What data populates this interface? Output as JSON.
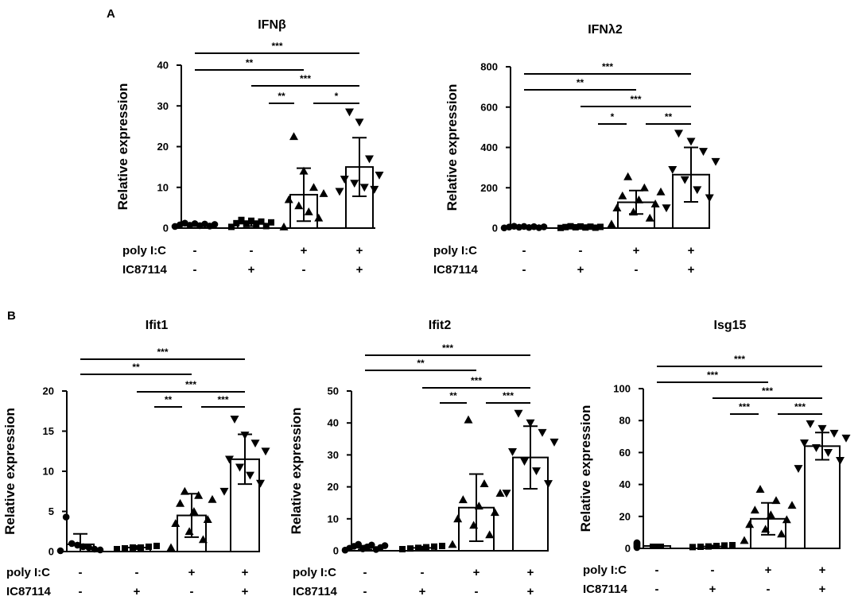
{
  "panels": [
    {
      "letter": "A",
      "charts": [
        0,
        1
      ]
    },
    {
      "letter": "B",
      "charts": [
        2,
        3,
        4
      ]
    }
  ],
  "conditions": {
    "rows": [
      {
        "label": "poly I:C",
        "signs": [
          "-",
          "-",
          "+",
          "+"
        ]
      },
      {
        "label": "IC87114",
        "signs": [
          "-",
          "+",
          "-",
          "+"
        ]
      }
    ]
  },
  "colors": {
    "ink": "#000000",
    "bar_fill": "#ffffff"
  },
  "chart_data": [
    {
      "type": "bar",
      "title": "IFNβ",
      "ylabel": "Relative expression",
      "ylim": [
        0,
        40
      ],
      "yticks": [
        0,
        10,
        20,
        30,
        40
      ],
      "categories": [
        "poly I:C - / IC87114 -",
        "poly I:C - / IC87114 +",
        "poly I:C + / IC87114 -",
        "poly I:C + / IC87114 +"
      ],
      "values": [
        0.8,
        1.1,
        8.2,
        15.0
      ],
      "errors": [
        0.3,
        0.6,
        6.5,
        7.2
      ],
      "markers": [
        "circle",
        "square",
        "triangle-up",
        "triangle-down"
      ],
      "points": [
        [
          0.4,
          0.5,
          0.6,
          0.7,
          0.8,
          0.9,
          1.0,
          1.1,
          1.2
        ],
        [
          0.3,
          0.5,
          0.8,
          1.0,
          1.2,
          1.4,
          1.6,
          1.8,
          2.0
        ],
        [
          0.3,
          2.5,
          4.0,
          5.5,
          7.0,
          8.5,
          10.0,
          14.0,
          22.5
        ],
        [
          9.0,
          9.5,
          10.0,
          11.0,
          12.0,
          13.0,
          17.0,
          26.0,
          28.5
        ]
      ],
      "significance": [
        {
          "from": 0,
          "to": 3,
          "label": "***"
        },
        {
          "from": 0,
          "to": 2,
          "label": "**"
        },
        {
          "from": 1,
          "to": 3,
          "label": "***"
        },
        {
          "from": 1,
          "to": 2,
          "label": "**"
        },
        {
          "from": 2,
          "to": 3,
          "label": "*"
        }
      ]
    },
    {
      "type": "bar",
      "title": "IFNλ2",
      "ylabel": "Relative expression",
      "ylim": [
        0,
        800
      ],
      "yticks": [
        0,
        200,
        400,
        600,
        800
      ],
      "categories": [
        "poly I:C - / IC87114 -",
        "poly I:C - / IC87114 +",
        "poly I:C + / IC87114 -",
        "poly I:C + / IC87114 +"
      ],
      "values": [
        5,
        6,
        128,
        265
      ],
      "errors": [
        3,
        3,
        58,
        135
      ],
      "markers": [
        "circle",
        "square",
        "triangle-up",
        "triangle-down"
      ],
      "points": [
        [
          1,
          2,
          3,
          4,
          5,
          6,
          7,
          8,
          9
        ],
        [
          1,
          2,
          3,
          4,
          5,
          6,
          7,
          8,
          9
        ],
        [
          20,
          50,
          80,
          100,
          120,
          140,
          160,
          180,
          200,
          255
        ],
        [
          100,
          150,
          190,
          240,
          290,
          330,
          380,
          430,
          470
        ]
      ],
      "significance": [
        {
          "from": 0,
          "to": 3,
          "label": "***"
        },
        {
          "from": 0,
          "to": 2,
          "label": "**"
        },
        {
          "from": 1,
          "to": 3,
          "label": "***"
        },
        {
          "from": 1,
          "to": 2,
          "label": "*"
        },
        {
          "from": 2,
          "to": 3,
          "label": "**"
        }
      ]
    },
    {
      "type": "bar",
      "title": "Ifit1",
      "ylabel": "Relative expression",
      "ylim": [
        0,
        20
      ],
      "yticks": [
        0,
        5,
        10,
        15,
        20
      ],
      "categories": [
        "poly I:C - / IC87114 -",
        "poly I:C - / IC87114 +",
        "poly I:C + / IC87114 -",
        "poly I:C + / IC87114 +"
      ],
      "values": [
        0.9,
        0.5,
        4.5,
        11.5
      ],
      "errors": [
        1.3,
        0.2,
        2.7,
        3.1
      ],
      "markers": [
        "circle",
        "square",
        "triangle-up",
        "triangle-down"
      ],
      "points": [
        [
          0.1,
          0.2,
          0.3,
          0.5,
          0.6,
          0.8,
          1.0,
          4.3
        ],
        [
          0.3,
          0.4,
          0.5,
          0.5,
          0.6,
          0.7
        ],
        [
          0.5,
          1.5,
          2.5,
          3.5,
          4.0,
          5.0,
          6.0,
          6.5,
          7.0,
          7.5
        ],
        [
          7.5,
          8.5,
          9.5,
          10.5,
          11.5,
          12.5,
          13.5,
          14.5,
          16.5
        ]
      ],
      "significance": [
        {
          "from": 0,
          "to": 3,
          "label": "***"
        },
        {
          "from": 0,
          "to": 2,
          "label": "**"
        },
        {
          "from": 1,
          "to": 3,
          "label": "***"
        },
        {
          "from": 1,
          "to": 2,
          "label": "**"
        },
        {
          "from": 2,
          "to": 3,
          "label": "***"
        }
      ]
    },
    {
      "type": "bar",
      "title": "Ifit2",
      "ylabel": "Relative expression",
      "ylim": [
        0,
        50
      ],
      "yticks": [
        0,
        10,
        20,
        30,
        40,
        50
      ],
      "categories": [
        "poly I:C - / IC87114 -",
        "poly I:C - / IC87114 +",
        "poly I:C + / IC87114 -",
        "poly I:C + / IC87114 +"
      ],
      "values": [
        1.0,
        0.9,
        13.5,
        29.2
      ],
      "errors": [
        0.6,
        0.4,
        10.5,
        9.8
      ],
      "markers": [
        "circle",
        "square",
        "triangle-up",
        "triangle-down"
      ],
      "points": [
        [
          0.2,
          0.4,
          0.6,
          0.8,
          1.0,
          1.2,
          1.4,
          1.6,
          1.8,
          2.0
        ],
        [
          0.5,
          0.7,
          0.9,
          1.1,
          1.3,
          1.5
        ],
        [
          2.0,
          5.0,
          8.0,
          10.0,
          12.0,
          14.0,
          16.0,
          18.0,
          21.0,
          41.0
        ],
        [
          18.0,
          21.0,
          25.0,
          28.0,
          31.0,
          34.0,
          37.0,
          40.0,
          43.0
        ]
      ],
      "significance": [
        {
          "from": 0,
          "to": 3,
          "label": "***"
        },
        {
          "from": 0,
          "to": 2,
          "label": "**"
        },
        {
          "from": 1,
          "to": 3,
          "label": "***"
        },
        {
          "from": 1,
          "to": 2,
          "label": "**"
        },
        {
          "from": 2,
          "to": 3,
          "label": "***"
        }
      ]
    },
    {
      "type": "bar",
      "title": "Isg15",
      "ylabel": "Relative expression",
      "ylim": [
        0,
        100
      ],
      "yticks": [
        0,
        20,
        40,
        60,
        80,
        100
      ],
      "categories": [
        "poly I:C - / IC87114 -",
        "poly I:C - / IC87114 +",
        "poly I:C + / IC87114 -",
        "poly I:C + / IC87114 +"
      ],
      "values": [
        1.5,
        1.2,
        18.5,
        64.0
      ],
      "errors": [
        1.0,
        0.6,
        10.0,
        8.5
      ],
      "markers": [
        "circle",
        "square",
        "triangle-up",
        "triangle-down"
      ],
      "points": [
        [
          0.5,
          1.0,
          1.5,
          2.0,
          2.5,
          3.0,
          3.5
        ],
        [
          0.8,
          1.0,
          1.2,
          1.5,
          1.8,
          2.0
        ],
        [
          5.0,
          9.0,
          12.0,
          15.0,
          18.0,
          21.0,
          24.0,
          27.0,
          30.0,
          37.0
        ],
        [
          50.0,
          55.0,
          60.0,
          63.0,
          66.0,
          69.0,
          72.0,
          75.0,
          78.0
        ]
      ],
      "significance": [
        {
          "from": 0,
          "to": 3,
          "label": "***"
        },
        {
          "from": 0,
          "to": 2,
          "label": "***"
        },
        {
          "from": 1,
          "to": 3,
          "label": "***"
        },
        {
          "from": 1,
          "to": 2,
          "label": "***"
        },
        {
          "from": 2,
          "to": 3,
          "label": "***"
        }
      ]
    }
  ]
}
